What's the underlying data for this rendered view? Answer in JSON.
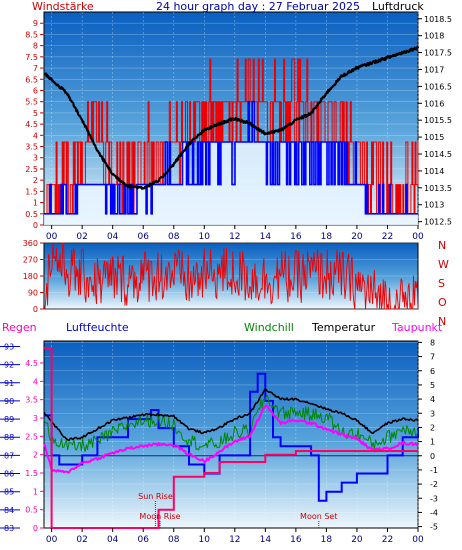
{
  "title": "24 hour graph day : 27 Februar 2025",
  "colors": {
    "panel_top": "#0a5fc0",
    "panel_bottom": "#e8f4fb",
    "wind": "#ee0000",
    "gust_fill": "#0000ff",
    "pressure": "#000000",
    "humidity": "#0000ff",
    "windchill": "#008800",
    "temperature": "#000000",
    "dewpoint": "#ff00ff",
    "rain": "#ff0066",
    "sun_moon": "#cc0000"
  },
  "chart_data": [
    {
      "id": "wind-pressure",
      "type": "line",
      "title": "24 hour graph day : 27 Februar 2025",
      "left_axis_label": "Windstärke",
      "right_axis_label": "Luftdruck",
      "left_ticks": [
        "0",
        "0.5",
        "1",
        "1.5",
        "2",
        "2.5",
        "3",
        "3.5",
        "4",
        "4.5",
        "5",
        "5.5",
        "6",
        "6.5",
        "7",
        "7.5",
        "8",
        "8.5",
        "9"
      ],
      "left_range": [
        0,
        9.5
      ],
      "right_ticks": [
        "1012.5",
        "1013",
        "1013.5",
        "1014",
        "1014.5",
        "1015",
        "1015.5",
        "1016",
        "1016.5",
        "1017",
        "1017.5",
        "1018",
        "1018.5"
      ],
      "right_range": [
        1012.4,
        1018.7
      ],
      "x_ticks": [
        "00",
        "02",
        "04",
        "06",
        "08",
        "10",
        "12",
        "14",
        "16",
        "18",
        "20",
        "22",
        "00"
      ],
      "x_range": [
        -0.5,
        24
      ],
      "series": [
        {
          "key": "pressure",
          "axis": "right",
          "x": [
            -0.5,
            0,
            1,
            2,
            3,
            4,
            5,
            6,
            7,
            8,
            9,
            10,
            11,
            12,
            13,
            14,
            15,
            16,
            17,
            18,
            19,
            20,
            21,
            22,
            23,
            24
          ],
          "y": [
            1016.9,
            1016.7,
            1016.3,
            1015.5,
            1014.6,
            1013.9,
            1013.55,
            1013.5,
            1013.7,
            1014.2,
            1014.8,
            1015.2,
            1015.4,
            1015.55,
            1015.4,
            1015.1,
            1015.2,
            1015.5,
            1015.7,
            1016.3,
            1016.8,
            1017.05,
            1017.2,
            1017.35,
            1017.5,
            1017.65
          ]
        },
        {
          "key": "wind",
          "axis": "left",
          "x": [
            -0.5,
            0,
            1,
            2,
            3,
            4,
            5,
            6,
            7,
            8,
            9,
            10,
            11,
            12,
            13,
            14,
            15,
            16,
            17,
            18,
            19,
            20,
            21,
            22,
            23,
            24
          ],
          "y": [
            1.5,
            1.5,
            1.8,
            3.5,
            4.5,
            3.0,
            2.0,
            3.0,
            3.0,
            3.5,
            4.5,
            5.0,
            4.5,
            5.5,
            6.5,
            5.0,
            5.0,
            5.5,
            5.0,
            4.5,
            4.5,
            2.5,
            1.8,
            1.5,
            1.5,
            1.5
          ]
        },
        {
          "key": "gust",
          "axis": "left",
          "x": [
            -0.5,
            0,
            1,
            2,
            3,
            4,
            5,
            6,
            7,
            8,
            9,
            10,
            11,
            12,
            13,
            14,
            15,
            16,
            17,
            18,
            19,
            20,
            21,
            22,
            23,
            24
          ],
          "y": [
            0.5,
            0.5,
            0.8,
            1.8,
            2.0,
            1.0,
            0.8,
            1.5,
            1.8,
            2.5,
            2.5,
            3.0,
            3.0,
            3.0,
            4.5,
            3.0,
            3.0,
            3.5,
            3.0,
            3.0,
            3.5,
            1.8,
            1.0,
            0.5,
            0.5,
            0.5
          ]
        }
      ]
    },
    {
      "id": "wind-direction",
      "type": "line",
      "left_ticks": [
        "0",
        "90",
        "180",
        "270",
        "360"
      ],
      "left_range": [
        0,
        360
      ],
      "right_labels": [
        "N",
        "W",
        "S",
        "O",
        "N"
      ],
      "x_range": [
        -0.5,
        24
      ],
      "series": [
        {
          "key": "direction",
          "x": [
            -0.5,
            0,
            1,
            2,
            3,
            4,
            5,
            6,
            7,
            8,
            9,
            10,
            11,
            12,
            13,
            14,
            15,
            16,
            17,
            18,
            19,
            20,
            21,
            22,
            23,
            24
          ],
          "y": [
            40,
            310,
            210,
            180,
            150,
            170,
            160,
            180,
            190,
            200,
            150,
            180,
            200,
            190,
            170,
            160,
            180,
            170,
            200,
            190,
            180,
            130,
            80,
            40,
            30,
            60
          ]
        }
      ]
    },
    {
      "id": "temperature-humidity",
      "type": "line",
      "labels": {
        "rain": "Regen",
        "humidity": "Luftfeuchte",
        "windchill": "Windchill",
        "temperature": "Temperatur",
        "dewpoint": "Taupunkt"
      },
      "humidity_ticks": [
        "83",
        "84",
        "85",
        "86",
        "87",
        "88",
        "89",
        "90",
        "91",
        "92",
        "93"
      ],
      "humidity_range": [
        83,
        93.3
      ],
      "rain_ticks": [
        "0",
        "0.5",
        "1",
        "1.5",
        "2",
        "2.5",
        "3",
        "3.5",
        "4",
        "4.5"
      ],
      "rain_range": [
        0,
        5.1
      ],
      "temp_ticks": [
        "-5",
        "-4",
        "-3",
        "-2",
        "-1",
        "0",
        "1",
        "2",
        "3",
        "4",
        "5",
        "6",
        "7",
        "8"
      ],
      "temp_range": [
        -5.1,
        8.1
      ],
      "x_ticks": [
        "00",
        "02",
        "04",
        "06",
        "08",
        "10",
        "12",
        "14",
        "16",
        "18",
        "20",
        "22",
        "00"
      ],
      "x_range": [
        -0.5,
        24
      ],
      "events": [
        {
          "label": "Sun Rise",
          "x": 6.8
        },
        {
          "label": "Moon Rise",
          "x": 7.1
        },
        {
          "label": "Moon Set",
          "x": 17.5
        }
      ],
      "series": [
        {
          "key": "temperature",
          "axis": "temp",
          "x": [
            -0.5,
            0,
            1,
            2,
            3,
            4,
            5,
            6,
            7,
            8,
            9,
            10,
            11,
            12,
            13,
            14,
            15,
            16,
            17,
            18,
            19,
            20,
            21,
            22,
            23,
            24
          ],
          "y": [
            3.1,
            2.4,
            1.1,
            1.3,
            1.9,
            2.5,
            2.7,
            2.9,
            2.9,
            2.8,
            1.9,
            1.6,
            2.0,
            2.6,
            3.0,
            4.7,
            4.0,
            4.0,
            3.7,
            3.3,
            3.0,
            2.5,
            1.6,
            2.3,
            2.6,
            2.5
          ]
        },
        {
          "key": "windchill",
          "axis": "temp",
          "x": [
            -0.5,
            0,
            1,
            2,
            3,
            4,
            5,
            6,
            7,
            8,
            9,
            10,
            11,
            12,
            13,
            14,
            15,
            16,
            17,
            18,
            19,
            20,
            21,
            22,
            23,
            24
          ],
          "y": [
            2.4,
            1.3,
            0.6,
            0.7,
            1.0,
            1.6,
            2.2,
            2.5,
            2.5,
            2.2,
            1.1,
            0.7,
            0.9,
            1.6,
            1.8,
            4.2,
            3.0,
            3.1,
            2.9,
            2.8,
            1.6,
            1.6,
            0.8,
            1.3,
            1.9,
            1.8
          ]
        },
        {
          "key": "dewpoint",
          "axis": "temp",
          "x": [
            -0.5,
            0,
            1,
            2,
            3,
            4,
            5,
            6,
            7,
            8,
            9,
            10,
            11,
            12,
            13,
            14,
            15,
            16,
            17,
            18,
            19,
            20,
            21,
            22,
            23,
            24
          ],
          "y": [
            0.9,
            -1.0,
            -1.2,
            -0.5,
            -0.2,
            0.2,
            0.5,
            0.7,
            0.8,
            0.8,
            0.1,
            -0.4,
            0.3,
            1.0,
            1.4,
            3.6,
            2.3,
            2.5,
            2.3,
            1.9,
            1.5,
            1.2,
            0.4,
            0.5,
            0.9,
            0.8
          ]
        },
        {
          "key": "humidity",
          "axis": "humidity",
          "x": [
            -0.5,
            0,
            0.5,
            1,
            2,
            3,
            4,
            5,
            6,
            6.5,
            7,
            8,
            9,
            10,
            11,
            12,
            13,
            13.5,
            14,
            14.5,
            15,
            16,
            17,
            17.5,
            18,
            19,
            20,
            21,
            22,
            23,
            24
          ],
          "y": [
            89.2,
            87.0,
            86.5,
            86.5,
            87.0,
            88.0,
            88.0,
            89.0,
            89.0,
            89.5,
            88.5,
            87.5,
            86.5,
            86.0,
            87.0,
            87.0,
            90.5,
            91.5,
            90.0,
            88.0,
            87.5,
            87.5,
            87.0,
            84.5,
            85.0,
            85.5,
            86.0,
            86.0,
            87.0,
            88.0,
            88.5
          ]
        },
        {
          "key": "rain",
          "axis": "rain",
          "x": [
            -0.5,
            0,
            0,
            1,
            2,
            3,
            4,
            5,
            6,
            7,
            8,
            9,
            10,
            11,
            12,
            13,
            14,
            15,
            16,
            17,
            18,
            19,
            20,
            21,
            22,
            23,
            24
          ],
          "y": [
            4.9,
            4.9,
            0.0,
            0.0,
            0.0,
            0.0,
            0.0,
            0.0,
            0.0,
            0.5,
            1.4,
            1.4,
            1.5,
            1.8,
            1.8,
            1.8,
            2.0,
            2.0,
            2.1,
            2.1,
            2.1,
            2.1,
            2.1,
            2.1,
            2.1,
            2.1,
            2.1
          ]
        }
      ]
    }
  ]
}
